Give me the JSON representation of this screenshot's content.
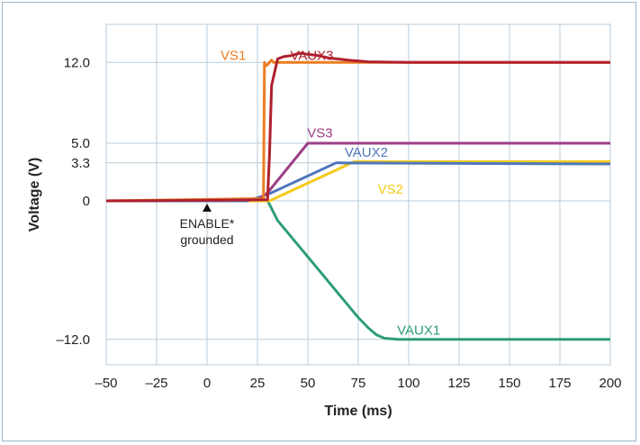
{
  "chart_data": {
    "type": "line",
    "title": "",
    "xlabel": "Time (ms)",
    "ylabel": "Voltage (V)",
    "xlim": [
      -50,
      200
    ],
    "ylim": [
      -14.2,
      15.3
    ],
    "x_ticks": [
      -50,
      -25,
      0,
      25,
      50,
      75,
      100,
      125,
      150,
      175,
      200
    ],
    "x_tick_labels": [
      "–50",
      "–25",
      "0",
      "25",
      "50",
      "75",
      "100",
      "125",
      "150",
      "175",
      "200"
    ],
    "y_ticks": [
      12.0,
      5.0,
      3.3,
      0,
      -12.0
    ],
    "y_tick_labels": [
      "12.0",
      "5.0",
      "3.3",
      "0",
      "–12.0"
    ],
    "grid": true,
    "legend": "none",
    "series": [
      {
        "name": "VS1",
        "color": "#ec7d22",
        "x": [
          -50,
          28,
          28.5,
          29,
          30,
          31,
          32,
          33,
          200
        ],
        "y": [
          0,
          0.2,
          12.0,
          11.7,
          11.8,
          12.0,
          12.2,
          12.0,
          12.0
        ]
      },
      {
        "name": "VAUX3",
        "color": "#b0202e",
        "x": [
          -50,
          30,
          31,
          32,
          35,
          38,
          42,
          46,
          50,
          55,
          60,
          70,
          80,
          100,
          200
        ],
        "y": [
          0,
          0.1,
          4.0,
          10.0,
          12.3,
          12.5,
          12.6,
          12.8,
          12.7,
          12.6,
          12.4,
          12.2,
          12.05,
          12.0,
          12.0
        ]
      },
      {
        "name": "VS3",
        "color": "#9c3f86",
        "x": [
          -50,
          25,
          30,
          50,
          52,
          200
        ],
        "y": [
          0,
          0.1,
          0.7,
          5.0,
          5.0,
          5.0
        ]
      },
      {
        "name": "VAUX2",
        "color": "#4f77ba",
        "x": [
          -50,
          20,
          30,
          64,
          66,
          200
        ],
        "y": [
          0,
          0.0,
          0.55,
          3.3,
          3.3,
          3.2
        ]
      },
      {
        "name": "VS2",
        "color": "#f5cb1c",
        "x": [
          -50,
          30,
          31,
          73,
          75,
          200
        ],
        "y": [
          0,
          0.0,
          0.0,
          3.4,
          3.4,
          3.4
        ]
      },
      {
        "name": "VAUX1",
        "color": "#2e9d78",
        "x": [
          -50,
          30,
          31,
          35,
          45,
          55,
          65,
          75,
          80,
          84,
          88,
          95,
          100,
          200
        ],
        "y": [
          0,
          0.0,
          -0.3,
          -1.7,
          -3.8,
          -5.9,
          -8.0,
          -10.1,
          -11.0,
          -11.6,
          -11.9,
          -12.0,
          -12.0,
          -12.0
        ]
      }
    ],
    "series_labels": [
      "VS1",
      "VAUX3",
      "VS3",
      "VAUX2",
      "VS2",
      "VAUX1"
    ],
    "annotations": [
      {
        "text_lines": [
          "ENABLE*",
          "grounded"
        ],
        "x": 0,
        "y": 0,
        "marker": "triangle-up"
      }
    ]
  }
}
